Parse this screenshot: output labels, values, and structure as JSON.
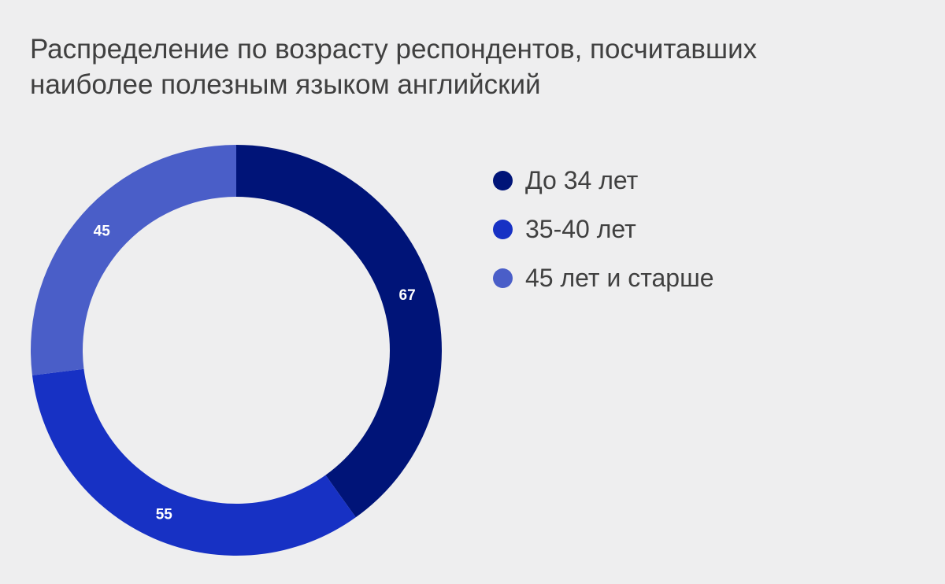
{
  "title_lines": [
    "Распределение по возрасту респондентов, посчитавших",
    "наиболее полезным языком английский"
  ],
  "chart_data": {
    "type": "pie",
    "variant": "donut",
    "title": "Распределение по возрасту респондентов, посчитавших наиболее полезным языком английский",
    "categories": [
      "До 34 лет",
      "35-40 лет",
      "45 лет и старше"
    ],
    "values": [
      67,
      55,
      45
    ],
    "data_labels": [
      "67",
      "55",
      "45"
    ],
    "colors": [
      "#001478",
      "#1731c4",
      "#4a5ec8"
    ],
    "start_angle_deg": 0,
    "direction": "clockwise",
    "legend_position": "right"
  }
}
